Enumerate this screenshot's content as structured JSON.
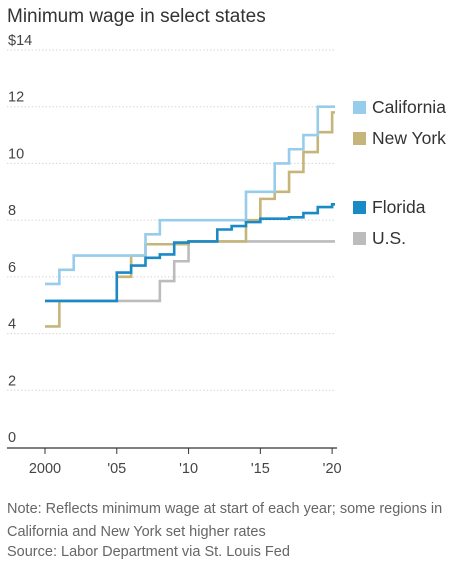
{
  "title": "Minimum wage in select states",
  "note": "Note: Reflects minimum wage at start of each year; some regions in California and New York set higher rates",
  "source": "Source: Labor Department via St. Louis Fed",
  "chart_data": {
    "type": "line",
    "step": true,
    "title": "Minimum wage in select states",
    "x_ticks": [
      2000,
      2005,
      2010,
      2015,
      2020
    ],
    "x_tick_labels": [
      "2000",
      "'05",
      "'10",
      "'15",
      "'20"
    ],
    "y_ticks": [
      0,
      2,
      4,
      6,
      8,
      10,
      12,
      14
    ],
    "y_tick_labels": [
      "0",
      "2",
      "4",
      "6",
      "8",
      "10",
      "12",
      "$14"
    ],
    "xlim": [
      2000,
      2020.2
    ],
    "ylim": [
      0,
      14
    ],
    "grid": "horizontal",
    "legend": "right",
    "series": [
      {
        "name": "California",
        "color": "#97ccea",
        "x": [
          2000,
          2001,
          2002,
          2003,
          2004,
          2005,
          2006,
          2007,
          2008,
          2009,
          2010,
          2011,
          2012,
          2013,
          2014,
          2015,
          2016,
          2017,
          2018,
          2019,
          2020
        ],
        "y": [
          5.75,
          6.25,
          6.75,
          6.75,
          6.75,
          6.75,
          6.75,
          7.5,
          8.0,
          8.0,
          8.0,
          8.0,
          8.0,
          8.0,
          9.0,
          9.0,
          10.0,
          10.5,
          11.0,
          12.0,
          12.0
        ]
      },
      {
        "name": "New York",
        "color": "#c6b57b",
        "x": [
          2000,
          2001,
          2002,
          2003,
          2004,
          2005,
          2006,
          2007,
          2008,
          2009,
          2010,
          2011,
          2012,
          2013,
          2014,
          2015,
          2016,
          2017,
          2018,
          2019,
          2020
        ],
        "y": [
          4.25,
          5.15,
          5.15,
          5.15,
          5.15,
          6.0,
          6.75,
          7.15,
          7.15,
          7.15,
          7.25,
          7.25,
          7.25,
          7.25,
          8.0,
          8.75,
          9.0,
          9.7,
          10.4,
          11.1,
          11.8
        ]
      },
      {
        "name": "Florida",
        "color": "#1a8ac6",
        "x": [
          2000,
          2001,
          2002,
          2003,
          2004,
          2005,
          2006,
          2007,
          2008,
          2009,
          2010,
          2011,
          2012,
          2013,
          2014,
          2015,
          2016,
          2017,
          2018,
          2019,
          2020
        ],
        "y": [
          5.15,
          5.15,
          5.15,
          5.15,
          5.15,
          6.15,
          6.4,
          6.67,
          6.79,
          7.21,
          7.25,
          7.25,
          7.67,
          7.79,
          7.93,
          8.05,
          8.05,
          8.1,
          8.25,
          8.46,
          8.56
        ]
      },
      {
        "name": "U.S.",
        "color": "#bcbcbc",
        "x": [
          2000,
          2001,
          2002,
          2003,
          2004,
          2005,
          2006,
          2007,
          2008,
          2009,
          2010,
          2011,
          2012,
          2013,
          2014,
          2015,
          2016,
          2017,
          2018,
          2019,
          2020
        ],
        "y": [
          5.15,
          5.15,
          5.15,
          5.15,
          5.15,
          5.15,
          5.15,
          5.15,
          5.85,
          6.55,
          7.25,
          7.25,
          7.25,
          7.25,
          7.25,
          7.25,
          7.25,
          7.25,
          7.25,
          7.25,
          7.25
        ]
      }
    ],
    "legend_order": [
      "California",
      "New York",
      "Florida",
      "U.S."
    ]
  }
}
